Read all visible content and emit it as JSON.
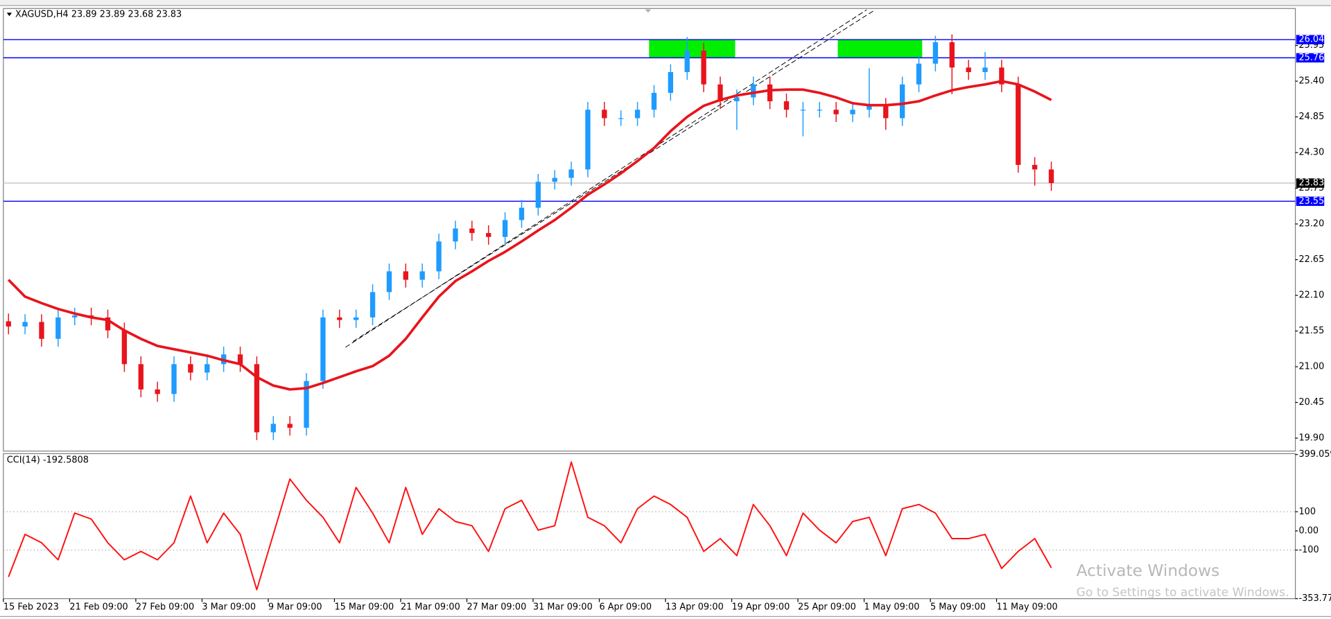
{
  "chart_data": {
    "type": "candlestick",
    "title": "XAGUSD,H4  23.89 23.89 23.68 23.83",
    "categories": [
      "15 Feb 2023",
      null,
      null,
      null,
      "21 Feb 09:00",
      null,
      null,
      null,
      "27 Feb 09:00",
      null,
      null,
      null,
      "3 Mar 09:00",
      null,
      null,
      null,
      "9 Mar 09:00",
      null,
      null,
      null,
      "15 Mar 09:00",
      null,
      null,
      null,
      "21 Mar 09:00",
      null,
      null,
      null,
      "27 Mar 09:00",
      null,
      null,
      null,
      "31 Mar 09:00",
      null,
      null,
      null,
      "6 Apr 09:00",
      null,
      null,
      null,
      "13 Apr 09:00",
      null,
      null,
      null,
      "19 Apr 09:00",
      null,
      null,
      null,
      "25 Apr 09:00",
      null,
      null,
      null,
      "1 May 09:00",
      null,
      null,
      null,
      "5 May 09:00",
      null,
      null,
      null,
      "11 May 09:00",
      null,
      null,
      null
    ],
    "open": [
      21.7,
      21.62,
      21.69,
      21.43,
      21.76,
      21.79,
      21.76,
      21.56,
      21.04,
      20.65,
      20.58,
      21.04,
      20.91,
      21.04,
      21.19,
      21.04,
      19.99,
      20.12,
      20.06,
      20.78,
      21.76,
      21.72,
      21.76,
      22.15,
      22.47,
      22.34,
      22.47,
      22.93,
      23.13,
      23.06,
      23.0,
      23.26,
      23.45,
      23.85,
      23.91,
      24.04,
      24.96,
      24.83,
      24.83,
      24.96,
      25.22,
      25.54,
      25.87,
      25.35,
      25.09,
      25.15,
      25.35,
      25.09,
      24.96,
      24.96,
      24.96,
      24.89,
      24.96,
      25.02,
      24.83,
      25.35,
      25.67,
      26.0,
      25.61,
      25.54,
      25.61,
      25.35,
      24.11,
      24.04
    ],
    "high": [
      21.82,
      21.81,
      21.81,
      21.88,
      21.91,
      21.91,
      21.88,
      21.68,
      21.16,
      20.77,
      21.16,
      21.16,
      21.16,
      21.31,
      21.31,
      21.16,
      20.24,
      20.24,
      20.9,
      21.88,
      21.88,
      21.88,
      22.27,
      22.59,
      22.59,
      22.59,
      23.05,
      23.25,
      23.25,
      23.18,
      23.38,
      23.57,
      23.97,
      24.03,
      24.16,
      25.08,
      25.08,
      24.95,
      25.08,
      25.34,
      25.66,
      26.08,
      25.99,
      25.47,
      25.27,
      25.47,
      25.47,
      25.21,
      25.08,
      25.08,
      25.08,
      25.08,
      25.6,
      25.14,
      25.47,
      25.79,
      26.1,
      26.12,
      25.73,
      25.85,
      25.73,
      25.47,
      24.23,
      24.16
    ],
    "low": [
      21.5,
      21.5,
      21.31,
      21.31,
      21.64,
      21.64,
      21.44,
      20.92,
      20.53,
      20.46,
      20.46,
      20.79,
      20.79,
      20.92,
      20.92,
      19.87,
      19.87,
      19.94,
      19.94,
      20.66,
      21.6,
      21.6,
      21.64,
      22.03,
      22.22,
      22.22,
      22.35,
      22.81,
      22.94,
      22.88,
      22.88,
      23.14,
      23.33,
      23.73,
      23.79,
      23.92,
      24.71,
      24.71,
      24.71,
      24.84,
      25.1,
      25.42,
      25.23,
      24.97,
      24.65,
      25.03,
      24.97,
      24.84,
      24.55,
      24.84,
      24.77,
      24.77,
      24.84,
      24.65,
      24.71,
      25.23,
      25.55,
      25.2,
      25.42,
      25.42,
      25.23,
      23.99,
      23.79,
      23.71
    ],
    "close": [
      21.62,
      21.69,
      21.43,
      21.76,
      21.79,
      21.76,
      21.56,
      21.04,
      20.65,
      20.58,
      21.04,
      20.91,
      21.04,
      21.19,
      21.04,
      19.99,
      20.12,
      20.06,
      20.78,
      21.76,
      21.72,
      21.76,
      22.15,
      22.47,
      22.34,
      22.47,
      22.93,
      23.13,
      23.06,
      23.0,
      23.26,
      23.45,
      23.85,
      23.91,
      24.04,
      24.96,
      24.83,
      24.83,
      24.96,
      25.22,
      25.54,
      25.87,
      25.35,
      25.09,
      25.15,
      25.35,
      25.09,
      24.96,
      24.96,
      24.96,
      24.89,
      24.96,
      25.02,
      24.83,
      25.35,
      25.67,
      26.0,
      25.61,
      25.54,
      25.61,
      25.35,
      24.11,
      24.04,
      23.83
    ],
    "up_color": "#1e9bff",
    "down_color": "#e8141c",
    "ylim": [
      19.7,
      26.52
    ],
    "yticks": [
      {
        "value": 19.9,
        "label": "19.90"
      },
      {
        "value": 20.45,
        "label": "20.45"
      },
      {
        "value": 21,
        "label": "21.00"
      },
      {
        "value": 21.55,
        "label": "21.55"
      },
      {
        "value": 22.1,
        "label": "22.10"
      },
      {
        "value": 22.65,
        "label": "22.65"
      },
      {
        "value": 23.2,
        "label": "23.20"
      },
      {
        "value": 23.75,
        "label": "23.75"
      },
      {
        "value": 24.3,
        "label": "24.30"
      },
      {
        "value": 24.85,
        "label": "24.85"
      },
      {
        "value": 25.4,
        "label": "25.40"
      },
      {
        "value": 25.95,
        "label": "25.95"
      }
    ],
    "ma": {
      "color": "#e8141c",
      "values": [
        22.34,
        22.08,
        21.98,
        21.89,
        21.82,
        21.76,
        21.72,
        21.56,
        21.43,
        21.32,
        21.27,
        21.22,
        21.17,
        21.1,
        21.04,
        20.84,
        20.71,
        20.65,
        20.67,
        20.75,
        20.84,
        20.93,
        21.01,
        21.17,
        21.43,
        21.76,
        22.08,
        22.32,
        22.47,
        22.63,
        22.77,
        22.93,
        23.1,
        23.26,
        23.45,
        23.65,
        23.81,
        23.98,
        24.17,
        24.37,
        24.63,
        24.85,
        25.02,
        25.11,
        25.18,
        25.22,
        25.26,
        25.27,
        25.27,
        25.22,
        25.15,
        25.06,
        25.03,
        25.03,
        25.05,
        25.09,
        25.18,
        25.26,
        25.31,
        25.35,
        25.4,
        25.35,
        25.24,
        25.11
      ]
    },
    "hlines": [
      {
        "value": 26.04,
        "color": "#0000ff",
        "box": "#0000ff"
      },
      {
        "value": 25.76,
        "color": "#0000ff",
        "box": "#0000ff"
      },
      {
        "value": 23.83,
        "color": "#c8c8c8",
        "box": "#000000"
      },
      {
        "value": 23.55,
        "color": "#0000ff",
        "box": "#0000ff"
      }
    ],
    "zones": [
      {
        "from": 38.7,
        "to": 43.9,
        "ylim": [
          25.76,
          26.04
        ],
        "color": "#00ee00"
      },
      {
        "from": 50.1,
        "to": 55.2,
        "ylim": [
          25.76,
          26.04
        ],
        "color": "#00ee00"
      }
    ],
    "trendlines": [
      {
        "x": [
          20.36,
          51.85
        ],
        "y": [
          21.3,
          26.5
        ]
      },
      {
        "x": [
          20.82,
          52.36
        ],
        "y": [
          21.39,
          26.5
        ]
      }
    ],
    "indicator": {
      "type": "line",
      "title": "CCI(14) -192.5808",
      "color": "#ff1010",
      "ylim": [
        -353.774,
        399.059
      ],
      "yticks": [
        -353.774,
        -100,
        {
          "value": 0,
          "label": "0.00"
        },
        100,
        399.059
      ],
      "levels": [
        -100,
        100
      ],
      "values": [
        -240,
        -18,
        -62,
        -151,
        93,
        62,
        -62,
        -151,
        -107,
        -151,
        -62,
        182,
        -62,
        93,
        -18,
        -307,
        -18,
        271,
        160,
        71,
        -62,
        227,
        93,
        -62,
        227,
        -18,
        116,
        49,
        27,
        -107,
        116,
        160,
        4,
        27,
        360,
        71,
        27,
        -62,
        116,
        182,
        138,
        71,
        -107,
        -40,
        -129,
        138,
        27,
        -129,
        93,
        4,
        -62,
        49,
        71,
        -129,
        116,
        138,
        93,
        -40,
        -40,
        -18,
        -196,
        -107,
        -40,
        -192.5808
      ]
    },
    "watermark": {
      "title": "Activate Windows",
      "subtitle": "Go to Settings to activate Windows."
    }
  }
}
